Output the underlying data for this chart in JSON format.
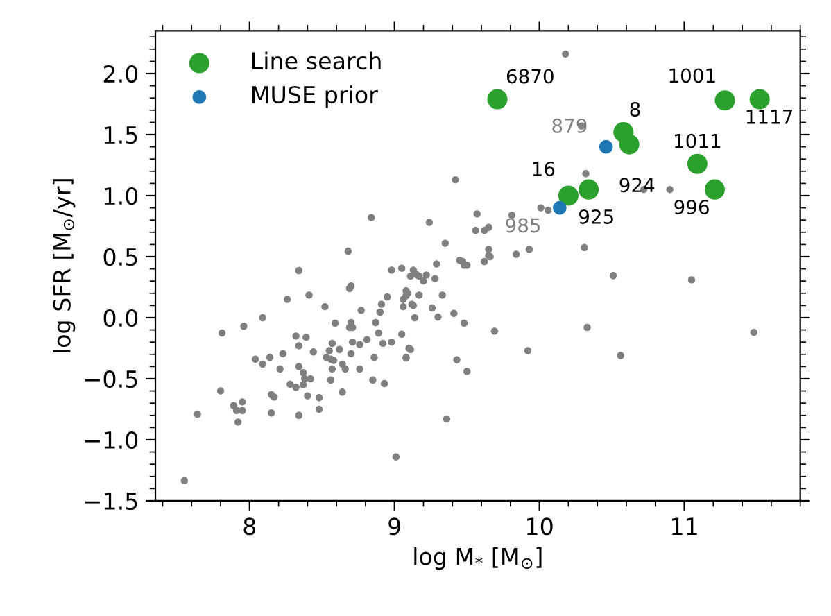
{
  "chart_data": {
    "type": "scatter",
    "xlabel": "log M$_{*}$ [M$_{⊙}$]",
    "ylabel": "log SFR [M$_{⊙}$/yr]",
    "xlim": [
      7.35,
      11.8
    ],
    "ylim": [
      -1.5,
      2.35
    ],
    "xticks": [
      8,
      9,
      10,
      11
    ],
    "yticks": [
      {
        "value": -1.5,
        "label": "−1.5"
      },
      {
        "value": -1.0,
        "label": "−1.0"
      },
      {
        "value": -0.5,
        "label": "−0.5"
      },
      {
        "value": 0.0,
        "label": "0.0"
      },
      {
        "value": 0.5,
        "label": "0.5"
      },
      {
        "value": 1.0,
        "label": "1.0"
      },
      {
        "value": 1.5,
        "label": "1.5"
      },
      {
        "value": 2.0,
        "label": "2.0"
      }
    ],
    "grid": false,
    "legend": "top left",
    "marker": "circle",
    "series": [
      {
        "color": "#808080",
        "x": [
          8.84,
          8.68,
          8.34,
          8.98,
          9.05,
          9.11,
          8.69,
          8.7,
          8.41,
          8.26,
          8.77,
          8.52,
          8.95,
          8.91,
          8.9,
          9.06,
          9.09,
          9.06,
          9.12,
          8.09,
          7.96,
          7.81,
          8.59,
          8.7,
          8.71,
          8.69,
          8.87,
          9.14,
          8.32,
          8.39,
          8.34,
          8.44,
          8.57,
          8.62,
          8.71,
          8.76,
          8.81,
          8.89,
          8.92,
          8.98,
          9.05,
          9.1,
          9.08,
          8.86,
          8.7,
          8.55,
          8.53,
          8.56,
          8.58,
          8.64,
          8.66,
          8.57,
          8.76,
          8.23,
          8.14,
          8.04,
          8.09,
          8.21,
          8.34,
          8.37,
          8.38,
          8.37,
          8.32,
          8.28,
          8.42,
          8.56,
          8.85,
          8.93,
          8.64,
          8.4,
          8.48,
          8.48,
          8.15,
          8.17,
          8.15,
          8.34,
          7.8,
          7.89,
          7.91,
          7.95,
          7.95,
          7.92,
          7.64,
          7.55,
          9.01,
          9.17,
          9.2,
          9.22,
          9.28,
          9.29,
          9.47,
          9.48,
          9.62,
          9.65,
          9.69,
          9.33,
          9.17,
          9.13,
          9.26,
          9.3,
          9.41,
          9.48,
          9.11,
          9.08,
          9.43,
          9.5,
          9.36,
          9.13,
          9.15,
          9.08,
          9.08,
          9.42,
          9.24,
          9.57,
          9.56,
          9.62,
          9.65,
          9.35,
          9.65,
          9.66,
          10.18,
          10.29,
          10.32,
          10.72,
          10.9,
          9.81,
          10.01,
          10.06,
          9.84,
          9.93,
          10.31,
          9.45,
          9.5,
          10.51,
          11.05,
          10.33,
          11.48,
          9.92,
          10.56
        ],
        "values": [
          0.82,
          0.545,
          0.386,
          0.39,
          0.405,
          0.34,
          0.24,
          0.26,
          0.185,
          0.15,
          0.06,
          0.09,
          0.17,
          0.11,
          0.045,
          0.15,
          0.2,
          0.09,
          0.11,
          0.0,
          -0.07,
          -0.125,
          -0.045,
          -0.04,
          -0.08,
          -0.08,
          -0.04,
          0.0,
          -0.15,
          -0.16,
          -0.23,
          -0.28,
          -0.21,
          -0.26,
          -0.2,
          -0.22,
          -0.18,
          -0.125,
          -0.21,
          -0.2,
          -0.135,
          -0.25,
          -0.325,
          -0.325,
          -0.295,
          -0.27,
          -0.325,
          -0.34,
          -0.35,
          -0.38,
          -0.42,
          -0.42,
          -0.42,
          -0.295,
          -0.325,
          -0.34,
          -0.38,
          -0.42,
          -0.4,
          -0.45,
          -0.5,
          -0.55,
          -0.57,
          -0.545,
          -0.5,
          -0.51,
          -0.51,
          -0.54,
          -0.61,
          -0.64,
          -0.655,
          -0.75,
          -0.63,
          -0.65,
          -0.78,
          -0.8,
          -0.6,
          -0.72,
          -0.76,
          -0.69,
          -0.76,
          -0.855,
          -0.79,
          -1.335,
          -1.14,
          0.34,
          0.3,
          0.35,
          0.32,
          0.44,
          0.46,
          0.43,
          0.46,
          0.51,
          -0.11,
          0.185,
          0.185,
          0.1,
          0.08,
          0.005,
          0.035,
          -0.045,
          -0.26,
          -0.33,
          -0.345,
          -0.44,
          -0.83,
          0.39,
          0.355,
          0.22,
          0.18,
          1.13,
          0.78,
          0.85,
          0.715,
          0.715,
          0.74,
          0.61,
          0.56,
          0.5,
          2.16,
          1.57,
          1.18,
          1.05,
          1.05,
          0.84,
          0.9,
          0.88,
          0.52,
          0.56,
          0.575,
          0.47,
          0.43,
          0.345,
          0.31,
          -0.08,
          -0.12,
          -0.27,
          -0.31
        ]
      },
      {
        "name": "Line search",
        "color": "#2ca02c",
        "x": [
          9.71,
          11.28,
          11.52,
          10.58,
          10.62,
          11.09,
          11.21,
          10.2,
          10.34
        ],
        "values": [
          1.79,
          1.78,
          1.79,
          1.52,
          1.42,
          1.26,
          1.05,
          1.0,
          1.05
        ]
      },
      {
        "name": "MUSE prior",
        "color": "#1f77b4",
        "x": [
          10.46,
          10.14
        ],
        "values": [
          1.4,
          0.9
        ]
      }
    ],
    "annotations": [
      {
        "text": "6870",
        "x": 9.71,
        "y": 1.79
      },
      {
        "text": "1001",
        "x": 11.28,
        "y": 1.78
      },
      {
        "text": "1117",
        "x": 11.52,
        "y": 1.79
      },
      {
        "text": "8",
        "x": 10.58,
        "y": 1.52
      },
      {
        "text": "924",
        "x": 10.62,
        "y": 1.42
      },
      {
        "text": "1011",
        "x": 11.09,
        "y": 1.26
      },
      {
        "text": "996",
        "x": 11.21,
        "y": 1.05
      },
      {
        "text": "16",
        "x": 10.2,
        "y": 1.0
      },
      {
        "text": "925",
        "x": 10.34,
        "y": 1.05
      },
      {
        "text": "879",
        "x": 10.46,
        "y": 1.4
      },
      {
        "text": "985",
        "x": 10.14,
        "y": 0.9
      }
    ]
  }
}
